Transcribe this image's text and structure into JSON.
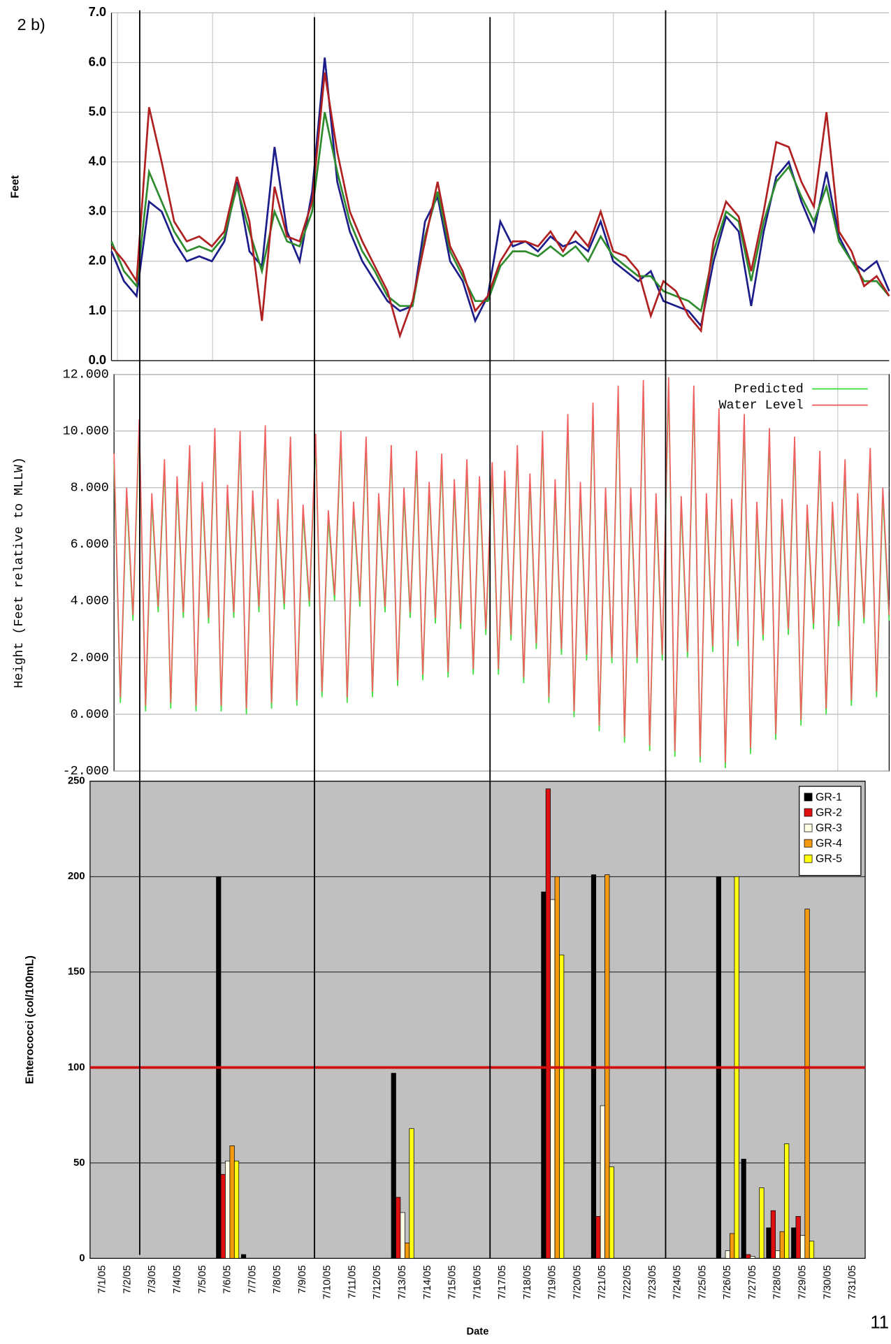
{
  "figure_label": "2 b)",
  "page_number": "11",
  "chart_data": [
    {
      "type": "line",
      "y_label": "Feet",
      "ylim": [
        0,
        7
      ],
      "yticks": [
        {
          "value": 0,
          "label": "0.0"
        },
        {
          "value": 1,
          "label": "1.0"
        },
        {
          "value": 2,
          "label": "2.0"
        },
        {
          "value": 3,
          "label": "3.0"
        },
        {
          "value": 4,
          "label": "4.0"
        },
        {
          "value": 5,
          "label": "5.0"
        },
        {
          "value": 6,
          "label": "6.0"
        },
        {
          "value": 7,
          "label": "7.0"
        }
      ],
      "grid": true,
      "series": [
        {
          "color": "#1c1c8a",
          "values": [
            2.2,
            1.6,
            1.3,
            3.2,
            3.0,
            2.4,
            2.0,
            2.1,
            2.0,
            2.4,
            3.6,
            2.2,
            1.9,
            4.3,
            2.6,
            2.0,
            3.4,
            6.1,
            3.6,
            2.6,
            2.0,
            1.6,
            1.2,
            1.0,
            1.1,
            2.8,
            3.3,
            2.0,
            1.6,
            0.8,
            1.3,
            2.8,
            2.3,
            2.4,
            2.2,
            2.5,
            2.3,
            2.4,
            2.2,
            2.8,
            2.0,
            1.8,
            1.6,
            1.8,
            1.2,
            1.1,
            1.0,
            0.7,
            2.0,
            2.9,
            2.6,
            1.1,
            2.6,
            3.7,
            4.0,
            3.2,
            2.6,
            3.8,
            2.5,
            2.0,
            1.8,
            2.0,
            1.4
          ]
        },
        {
          "color": "#2e8b2e",
          "values": [
            2.4,
            1.8,
            1.5,
            3.8,
            3.2,
            2.6,
            2.2,
            2.3,
            2.2,
            2.5,
            3.5,
            2.6,
            1.8,
            3.0,
            2.4,
            2.3,
            3.0,
            5.0,
            3.8,
            2.8,
            2.2,
            1.8,
            1.3,
            1.1,
            1.1,
            2.5,
            3.4,
            2.2,
            1.7,
            1.2,
            1.2,
            1.9,
            2.2,
            2.2,
            2.1,
            2.3,
            2.1,
            2.3,
            2.0,
            2.5,
            2.1,
            1.9,
            1.7,
            1.7,
            1.4,
            1.3,
            1.2,
            1.0,
            2.2,
            3.0,
            2.8,
            1.6,
            2.8,
            3.6,
            3.9,
            3.3,
            2.8,
            3.5,
            2.4,
            2.0,
            1.6,
            1.6,
            1.3
          ]
        },
        {
          "color": "#b02020",
          "values": [
            2.3,
            2.0,
            1.6,
            5.1,
            4.0,
            2.8,
            2.4,
            2.5,
            2.3,
            2.6,
            3.7,
            2.8,
            0.8,
            3.5,
            2.5,
            2.4,
            3.2,
            5.8,
            4.2,
            3.0,
            2.4,
            1.9,
            1.4,
            0.5,
            1.2,
            2.4,
            3.6,
            2.3,
            1.8,
            1.0,
            1.3,
            2.0,
            2.4,
            2.4,
            2.3,
            2.6,
            2.2,
            2.6,
            2.3,
            3.0,
            2.2,
            2.1,
            1.8,
            0.9,
            1.6,
            1.4,
            0.9,
            0.6,
            2.4,
            3.2,
            2.9,
            1.8,
            3.0,
            4.4,
            4.3,
            3.6,
            3.1,
            5.0,
            2.6,
            2.2,
            1.5,
            1.7,
            1.3
          ]
        }
      ]
    },
    {
      "type": "line",
      "y_label": "Height (Feet relative to MLLW)",
      "ylim": [
        -2,
        12
      ],
      "yticks": [
        {
          "value": -2,
          "label": "-2.000"
        },
        {
          "value": 0,
          "label": "0.000"
        },
        {
          "value": 2,
          "label": "2.000"
        },
        {
          "value": 4,
          "label": "4.000"
        },
        {
          "value": 6,
          "label": "6.000"
        },
        {
          "value": 8,
          "label": "8.000"
        },
        {
          "value": 10,
          "label": "10.000"
        },
        {
          "value": 12,
          "label": "12.000"
        }
      ],
      "grid": true,
      "legend": "top-right",
      "series": [
        {
          "name": "Predicted",
          "color": "#44dd44",
          "values": [
            8.9,
            0.4,
            7.7,
            3.3,
            10.1,
            0.1,
            7.5,
            3.6,
            8.7,
            0.2,
            8.1,
            3.4,
            9.2,
            0.1,
            7.9,
            3.2,
            9.8,
            0.1,
            7.8,
            3.4,
            9.7,
            0.0,
            7.6,
            3.6,
            9.9,
            0.2,
            7.3,
            3.7,
            9.5,
            0.3,
            7.1,
            3.8,
            9.6,
            0.6,
            6.9,
            4.0,
            9.7,
            0.4,
            7.2,
            3.8,
            9.5,
            0.6,
            7.5,
            3.6,
            9.2,
            1.0,
            7.7,
            3.4,
            9.0,
            1.2,
            7.9,
            3.2,
            8.9,
            1.3,
            8.0,
            3.0,
            8.7,
            1.4,
            8.1,
            2.8,
            8.6,
            1.4,
            8.3,
            2.6,
            9.2,
            1.1,
            8.2,
            2.3,
            9.7,
            0.4,
            8.0,
            2.1,
            10.3,
            -0.1,
            7.9,
            1.9,
            10.7,
            -0.6,
            7.7,
            1.8,
            11.3,
            -1.0,
            7.7,
            1.8,
            11.5,
            -1.3,
            7.5,
            1.9,
            11.6,
            -1.5,
            7.4,
            2.0,
            11.3,
            -1.7,
            7.5,
            2.2,
            10.5,
            -1.9,
            7.3,
            2.4,
            10.3,
            -1.4,
            7.2,
            2.6,
            9.8,
            -0.9,
            7.3,
            2.8,
            9.5,
            -0.4,
            7.1,
            3.0,
            9.0,
            0.0,
            7.2,
            3.1,
            8.7,
            0.3,
            7.5,
            3.2,
            9.1,
            0.6,
            7.7,
            3.3
          ]
        },
        {
          "name": "Water Level",
          "color": "#f06060",
          "values": [
            9.2,
            0.6,
            8.0,
            3.5,
            10.4,
            0.3,
            7.8,
            3.8,
            9.0,
            0.4,
            8.4,
            3.6,
            9.5,
            0.3,
            8.2,
            3.4,
            10.1,
            0.3,
            8.1,
            3.6,
            10.0,
            0.2,
            7.9,
            3.8,
            10.2,
            0.4,
            7.6,
            3.9,
            9.8,
            0.5,
            7.4,
            4.0,
            9.9,
            0.8,
            7.2,
            4.2,
            10.0,
            0.6,
            7.5,
            4.0,
            9.8,
            0.8,
            7.8,
            3.8,
            9.5,
            1.2,
            8.0,
            3.6,
            9.3,
            1.4,
            8.2,
            3.4,
            9.2,
            1.5,
            8.3,
            3.2,
            9.0,
            1.6,
            8.4,
            3.0,
            8.9,
            1.6,
            8.6,
            2.8,
            9.5,
            1.3,
            8.5,
            2.5,
            10.0,
            0.6,
            8.3,
            2.3,
            10.6,
            0.1,
            8.2,
            2.1,
            11.0,
            -0.4,
            8.0,
            2.0,
            11.6,
            -0.8,
            8.0,
            2.0,
            11.8,
            -1.1,
            7.8,
            2.1,
            11.9,
            -1.3,
            7.7,
            2.2,
            11.6,
            -1.5,
            7.8,
            2.4,
            10.8,
            -1.7,
            7.6,
            2.6,
            10.6,
            -1.2,
            7.5,
            2.8,
            10.1,
            -0.7,
            7.6,
            3.0,
            9.8,
            -0.2,
            7.4,
            3.2,
            9.3,
            0.2,
            7.5,
            3.3,
            9.0,
            0.5,
            7.8,
            3.4,
            9.4,
            0.8,
            8.0,
            3.5
          ]
        }
      ]
    },
    {
      "type": "bar",
      "y_label": "Enterococci (col/100mL)",
      "x_label": "Date",
      "ylim": [
        0,
        250
      ],
      "yticks": [
        0,
        50,
        100,
        150,
        200,
        250
      ],
      "grid": true,
      "legend": "top-right",
      "hline": {
        "value": 100,
        "color": "#d01010"
      },
      "categories": [
        "7/1/05",
        "7/2/05",
        "7/3/05",
        "7/4/05",
        "7/5/05",
        "7/6/05",
        "7/7/05",
        "7/8/05",
        "7/9/05",
        "7/10/05",
        "7/11/05",
        "7/12/05",
        "7/13/05",
        "7/14/05",
        "7/15/05",
        "7/16/05",
        "7/17/05",
        "7/18/05",
        "7/19/05",
        "7/20/05",
        "7/21/05",
        "7/22/05",
        "7/23/05",
        "7/24/05",
        "7/25/05",
        "7/26/05",
        "7/27/05",
        "7/28/05",
        "7/29/05",
        "7/30/05",
        "7/31/05"
      ],
      "series": [
        {
          "name": "GR-1",
          "color": "#000000",
          "values": [
            null,
            null,
            null,
            null,
            null,
            200,
            2,
            null,
            null,
            null,
            null,
            null,
            97,
            null,
            null,
            null,
            null,
            null,
            192,
            null,
            201,
            null,
            null,
            null,
            null,
            200,
            52,
            16,
            16,
            null,
            null
          ]
        },
        {
          "name": "GR-2",
          "color": "#e01010",
          "values": [
            null,
            null,
            null,
            null,
            null,
            44,
            null,
            null,
            null,
            null,
            null,
            null,
            32,
            null,
            null,
            null,
            null,
            null,
            246,
            null,
            22,
            null,
            null,
            null,
            null,
            null,
            2,
            25,
            22,
            null,
            null
          ]
        },
        {
          "name": "GR-3",
          "color": "#ffffe6",
          "values": [
            null,
            null,
            null,
            null,
            null,
            51,
            null,
            null,
            null,
            null,
            null,
            null,
            24,
            null,
            null,
            null,
            null,
            null,
            188,
            null,
            80,
            null,
            null,
            null,
            null,
            4,
            1,
            4,
            12,
            null,
            null
          ]
        },
        {
          "name": "GR-4",
          "color": "#f39a10",
          "values": [
            null,
            null,
            null,
            null,
            null,
            59,
            null,
            null,
            null,
            null,
            null,
            null,
            8,
            null,
            null,
            null,
            null,
            null,
            200,
            null,
            201,
            null,
            null,
            null,
            null,
            13,
            null,
            14,
            183,
            null,
            null
          ]
        },
        {
          "name": "GR-5",
          "color": "#ffff10",
          "values": [
            null,
            null,
            null,
            null,
            null,
            51,
            null,
            null,
            null,
            null,
            null,
            null,
            68,
            null,
            null,
            null,
            null,
            null,
            159,
            null,
            48,
            null,
            null,
            null,
            null,
            200,
            37,
            60,
            9,
            null,
            null
          ]
        }
      ]
    }
  ]
}
